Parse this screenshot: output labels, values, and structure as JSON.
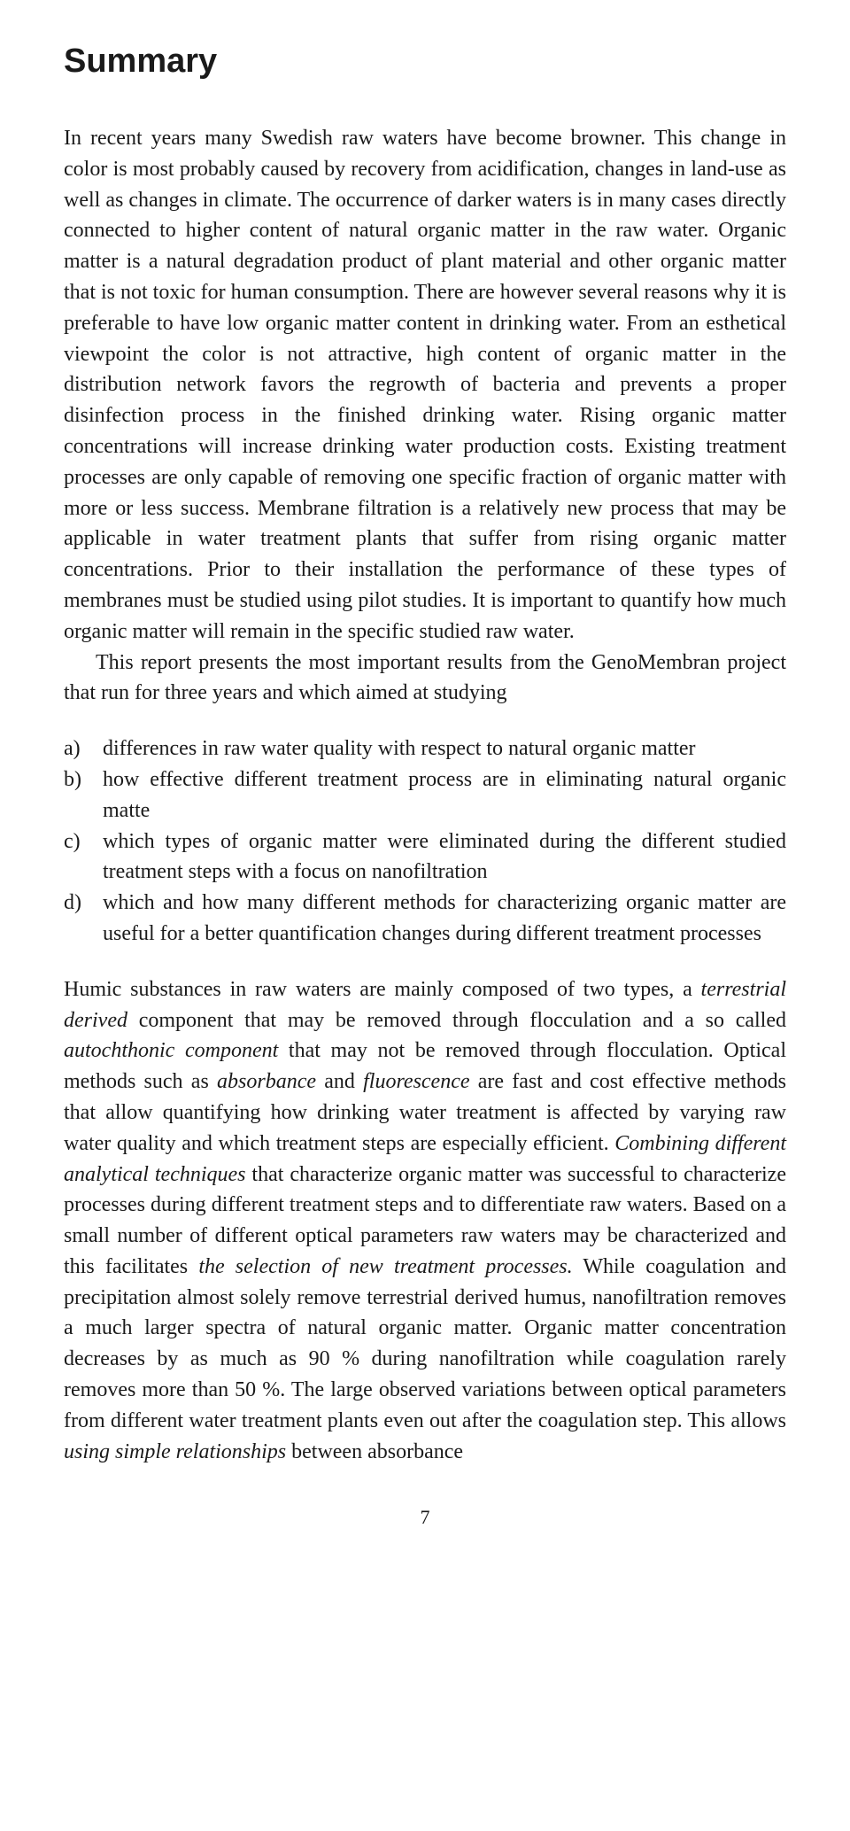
{
  "heading": "Summary",
  "para1_a": "In recent years many Swedish raw waters have become browner. This change in color is most probably caused by recovery from acidification, changes in land-use as well as changes in climate. The occurrence of darker waters is in many cases directly connected to higher content of natural organic matter in the raw water. Organic matter is a natural degradation product of plant material and other organic matter that is not toxic for human consumption. There are however several reasons why it is preferable to have low organic matter content in drinking water. From an esthetical viewpoint the color is not attractive, high content of organic matter in the distribution network favors the regrowth of bacteria and prevents a proper disinfection process in the finished drinking water. Rising organic matter concentrations will increase drinking water production costs. Existing treatment processes are only capable of removing one specific fraction of organic matter with more or less success. Membrane filtration is a relatively new process that may be applicable in water treatment plants that suffer from rising organic matter concentrations. Prior to their installation the performance of these types of membranes must be studied using pilot studies. It is important to quantify how much organic matter will remain in the specific studied raw water.",
  "para1_b": "This report presents the most important results from the GenoMembran project that run for three years and which aimed at studying",
  "list": {
    "a": {
      "label": "a)",
      "text": "differences in raw water quality with respect to natural organic matter"
    },
    "b": {
      "label": "b)",
      "text": "how effective different treatment process are in eliminating natural organic matte"
    },
    "c": {
      "label": "c)",
      "text": "which types of organic matter were eliminated during the different studied treatment steps with a focus on nanofiltration"
    },
    "d": {
      "label": "d)",
      "text": "which and how many different methods for characterizing organic matter are useful for a better quantification changes during different treatment processes"
    }
  },
  "para2": {
    "t1": "Humic substances in raw waters are mainly composed of two types, a ",
    "i1": "terrestrial derived",
    "t2": " component that may be removed through flocculation and a so called ",
    "i2": "autochthonic component",
    "t3": " that may not be removed through flocculation. Optical methods such as ",
    "i3": "absorbance",
    "t4": " and ",
    "i4": "fluorescence",
    "t5": " are fast and cost effective methods that allow quantifying how drinking water treatment is affected by varying raw water quality and which treatment steps are especially efficient. ",
    "i5": "Combining different analytical techniques",
    "t6": " that characterize organic matter was successful to characterize processes during different treatment steps and to differentiate raw waters. Based on a small number of different optical parameters raw waters may be characterized and this facilitates ",
    "i6": "the selection of new treatment processes.",
    "t7": " While coagulation and precipitation almost solely remove terrestrial derived humus, nanofiltration removes a much larger spectra of natural organic matter. Organic matter concentration decreases by as much as 90 % during nanofiltration while coagulation rarely removes more than 50 %. The large observed variations between optical parameters from different water treatment plants even out after the coagulation step. This allows ",
    "i7": "using simple relationships",
    "t8": " between absorbance"
  },
  "pagenum": "7"
}
